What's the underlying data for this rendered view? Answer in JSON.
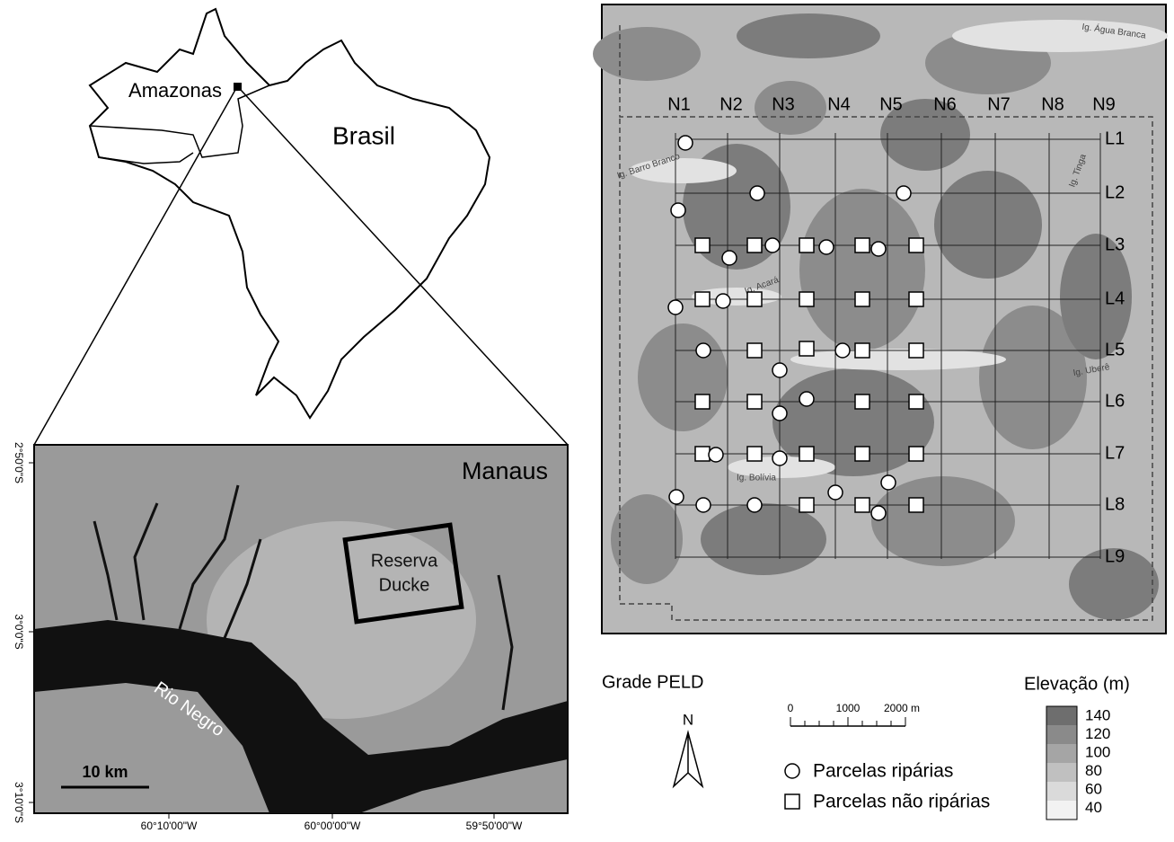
{
  "brazil_map": {
    "state_label": "Amazonas",
    "country_label": "Brasil"
  },
  "inset_map": {
    "city_label": "Manaus",
    "reserve_label": [
      "Reserva",
      "Ducke"
    ],
    "river_label": "Rio Negro",
    "scale_label": "10 km",
    "latitude_labels": [
      "2°50'0\"S",
      "3°0'0\"S",
      "3°10'0\"S"
    ],
    "longitude_labels": [
      "60°10'00\"W",
      "60°00'00\"W",
      "59°50'00\"W"
    ]
  },
  "grid_map": {
    "columns": [
      "N1",
      "N2",
      "N3",
      "N4",
      "N5",
      "N6",
      "N7",
      "N8",
      "N9"
    ],
    "rows": [
      "L1",
      "L2",
      "L3",
      "L4",
      "L5",
      "L6",
      "L7",
      "L8",
      "L9"
    ],
    "stream_labels": [
      "Ig. Água Branca",
      "Ig. Barro Branco",
      "Ig. Tinga",
      "Ig. Acará",
      "Ig. Uberê",
      "Ig. Bolívia"
    ]
  },
  "legend": {
    "title": "Grade PELD",
    "north": "N",
    "scale_labels": [
      "0",
      "1000",
      "2000 m"
    ],
    "riparian": "Parcelas ripárias",
    "non_riparian": "Parcelas não ripárias",
    "elevation_title": "Elevação (m)",
    "elevation_labels": [
      "140",
      "120",
      "100",
      "80",
      "60",
      "40"
    ]
  }
}
